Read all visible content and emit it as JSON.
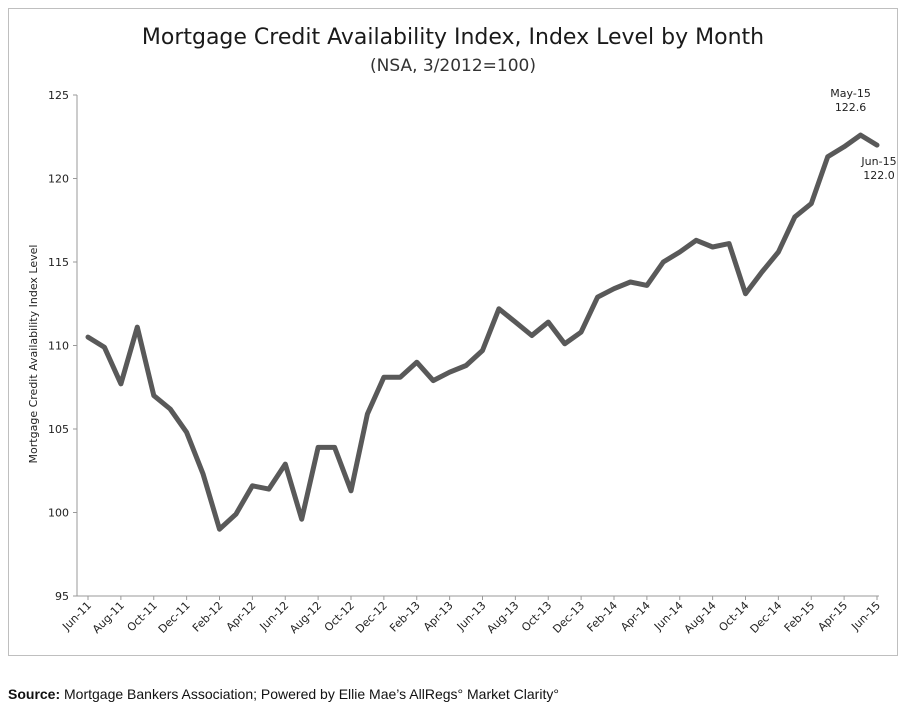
{
  "chart_data": {
    "type": "line",
    "title": "Mortgage Credit Availability Index, Index Level by Month",
    "subtitle": "(NSA, 3/2012=100)",
    "ylabel": "Mortgage Credit Availability Index Level",
    "xlabel": "",
    "ylim": [
      95,
      125
    ],
    "yticks": [
      95,
      100,
      105,
      110,
      115,
      120,
      125
    ],
    "grid": false,
    "x_tick_labels": [
      "Jun-11",
      "Aug-11",
      "Oct-11",
      "Dec-11",
      "Feb-12",
      "Apr-12",
      "Jun-12",
      "Aug-12",
      "Oct-12",
      "Dec-12",
      "Feb-13",
      "Apr-13",
      "Jun-13",
      "Aug-13",
      "Oct-13",
      "Dec-13",
      "Feb-14",
      "Apr-14",
      "Jun-14",
      "Aug-14",
      "Oct-14",
      "Dec-14",
      "Feb-15",
      "Apr-15",
      "Jun-15"
    ],
    "x": [
      "Jun-11",
      "Jul-11",
      "Aug-11",
      "Sep-11",
      "Oct-11",
      "Nov-11",
      "Dec-11",
      "Jan-12",
      "Feb-12",
      "Mar-12",
      "Apr-12",
      "May-12",
      "Jun-12",
      "Jul-12",
      "Aug-12",
      "Sep-12",
      "Oct-12",
      "Nov-12",
      "Dec-12",
      "Jan-13",
      "Feb-13",
      "Mar-13",
      "Apr-13",
      "May-13",
      "Jun-13",
      "Jul-13",
      "Aug-13",
      "Sep-13",
      "Oct-13",
      "Nov-13",
      "Dec-13",
      "Jan-14",
      "Feb-14",
      "Mar-14",
      "Apr-14",
      "May-14",
      "Jun-14",
      "Jul-14",
      "Aug-14",
      "Sep-14",
      "Oct-14",
      "Nov-14",
      "Dec-14",
      "Jan-15",
      "Feb-15",
      "Mar-15",
      "Apr-15",
      "May-15",
      "Jun-15"
    ],
    "series": [
      {
        "color": "#595959",
        "values": [
          110.5,
          109.9,
          107.7,
          111.1,
          107.0,
          106.2,
          104.8,
          102.3,
          99.0,
          99.9,
          101.6,
          101.4,
          102.9,
          99.6,
          103.9,
          103.9,
          101.3,
          105.9,
          108.1,
          108.1,
          109.0,
          107.9,
          108.4,
          108.8,
          109.7,
          112.2,
          111.4,
          110.6,
          111.4,
          110.1,
          110.8,
          112.9,
          113.4,
          113.8,
          113.6,
          115.0,
          115.6,
          116.3,
          115.9,
          116.1,
          113.1,
          114.4,
          115.6,
          117.7,
          118.5,
          121.3,
          121.9,
          122.6,
          122.0
        ]
      }
    ],
    "annotations": [
      {
        "x": "May-15",
        "label": "May-15",
        "value_text": "122.6"
      },
      {
        "x": "Jun-15",
        "label": "Jun-15",
        "value_text": "122.0"
      }
    ]
  },
  "source": {
    "label": "Source:",
    "text": " Mortgage Bankers Association; Powered by Ellie Mae’s AllRegs° Market Clarity°"
  }
}
